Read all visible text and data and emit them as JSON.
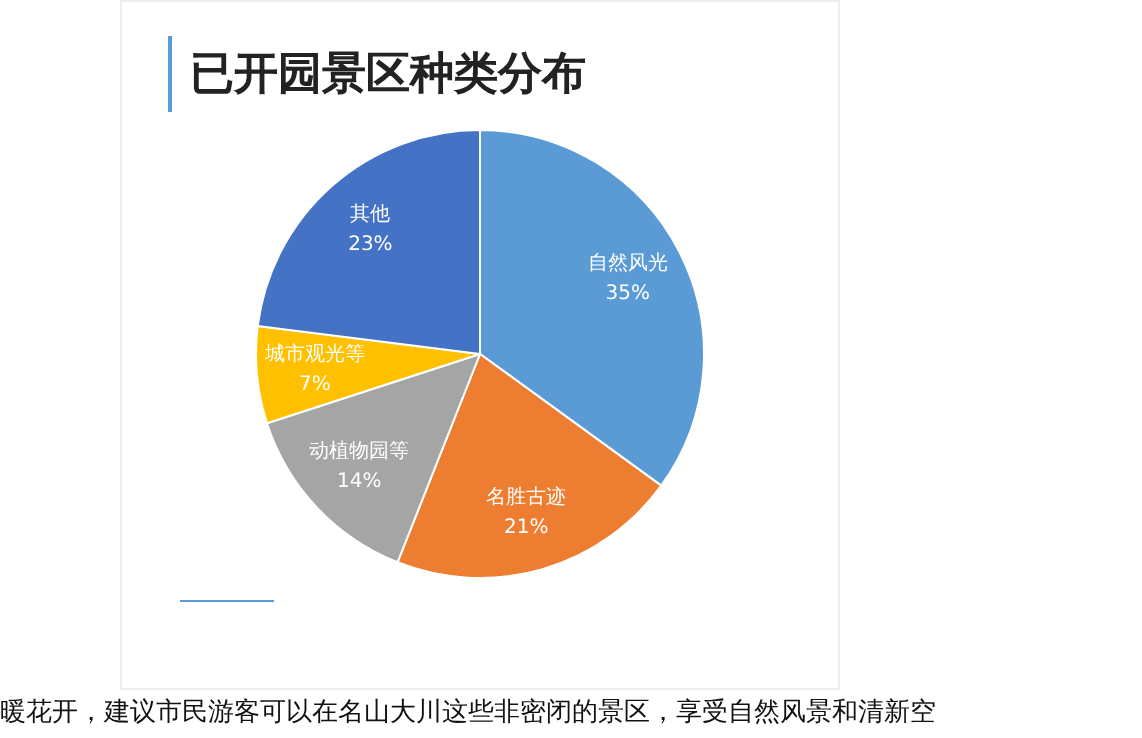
{
  "chart_data": {
    "type": "pie",
    "title": "已开园景区种类分布",
    "categories": [
      "自然风光",
      "名胜古迹",
      "动植物园等",
      "城市观光等",
      "其他"
    ],
    "values": [
      35,
      21,
      14,
      7,
      23
    ],
    "value_labels": [
      "35%",
      "21%",
      "14%",
      "7%",
      "23%"
    ],
    "colors": [
      "#5b9bd5",
      "#ed7d31",
      "#a5a5a5",
      "#ffc000",
      "#4472c4"
    ],
    "legend": false,
    "annotations": [
      "暖花开，建议市民游客可以在名山大川这些非密闭的景区，享受自然风景和清新空"
    ]
  }
}
